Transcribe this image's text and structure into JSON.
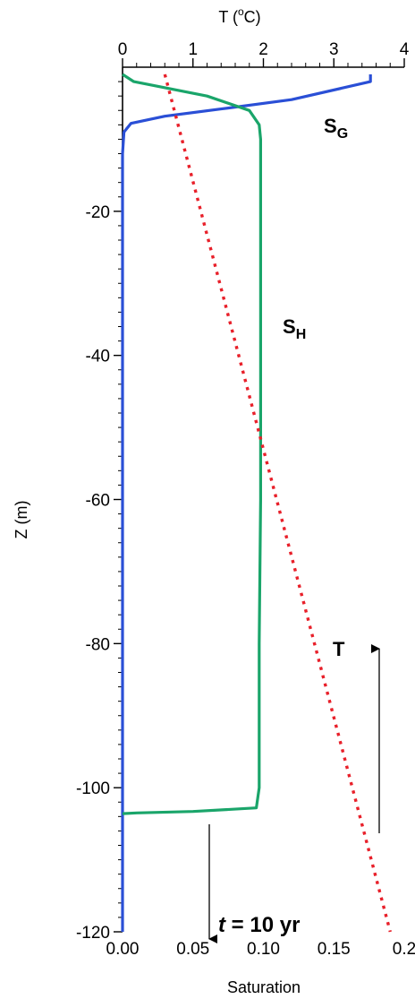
{
  "chart_data": {
    "type": "line",
    "top_axis": {
      "label_prefix": "T (",
      "label_sup": "o",
      "label_suffix": "C)",
      "range": [
        0,
        4
      ],
      "ticks": [
        0,
        1,
        2,
        3,
        4
      ],
      "tick_labels": [
        "0",
        "1",
        "2",
        "3",
        "4"
      ]
    },
    "bottom_axis": {
      "label": "Saturation",
      "range": [
        0.0,
        0.2
      ],
      "ticks": [
        0.0,
        0.05,
        0.1,
        0.15,
        0.2
      ],
      "tick_labels": [
        "0.00",
        "0.05",
        "0.10",
        "0.15",
        "0.2"
      ]
    },
    "y_axis": {
      "label": "Z (m)",
      "range": [
        -120,
        0
      ],
      "ticks": [
        -20,
        -40,
        -60,
        -80,
        -100,
        -120
      ],
      "tick_labels": [
        "-20",
        "-40",
        "-60",
        "-80",
        "-100",
        "-120"
      ]
    },
    "series": [
      {
        "name": "S",
        "subscript": "G",
        "axis": "saturation",
        "color": "#2a4fd6",
        "style": "solid",
        "points": [
          [
            0.176,
            -1
          ],
          [
            0.176,
            -2
          ],
          [
            0.12,
            -4.5
          ],
          [
            0.07,
            -5.8
          ],
          [
            0.03,
            -6.8
          ],
          [
            0.006,
            -7.8
          ],
          [
            0.001,
            -9
          ],
          [
            0.0,
            -12
          ],
          [
            0.0,
            -120
          ]
        ]
      },
      {
        "name": "S",
        "subscript": "H",
        "axis": "saturation",
        "color": "#1aa56a",
        "style": "solid",
        "points": [
          [
            0.0,
            -1
          ],
          [
            0.008,
            -2
          ],
          [
            0.06,
            -4
          ],
          [
            0.09,
            -6
          ],
          [
            0.097,
            -8
          ],
          [
            0.098,
            -10
          ],
          [
            0.098,
            -30
          ],
          [
            0.098,
            -60
          ],
          [
            0.097,
            -80
          ],
          [
            0.097,
            -100
          ],
          [
            0.095,
            -102.8
          ],
          [
            0.05,
            -103.3
          ],
          [
            0.01,
            -103.5
          ],
          [
            0.0,
            -103.6
          ]
        ]
      },
      {
        "name": "T",
        "axis": "temperature",
        "color": "#e8202a",
        "style": "dotted",
        "points": [
          [
            0.6,
            -1
          ],
          [
            3.8,
            -120
          ]
        ]
      }
    ],
    "annotations": {
      "time_label_italic": "t",
      "time_label_rest": " = 10 yr"
    },
    "grid": false,
    "legend": "inline labels"
  }
}
